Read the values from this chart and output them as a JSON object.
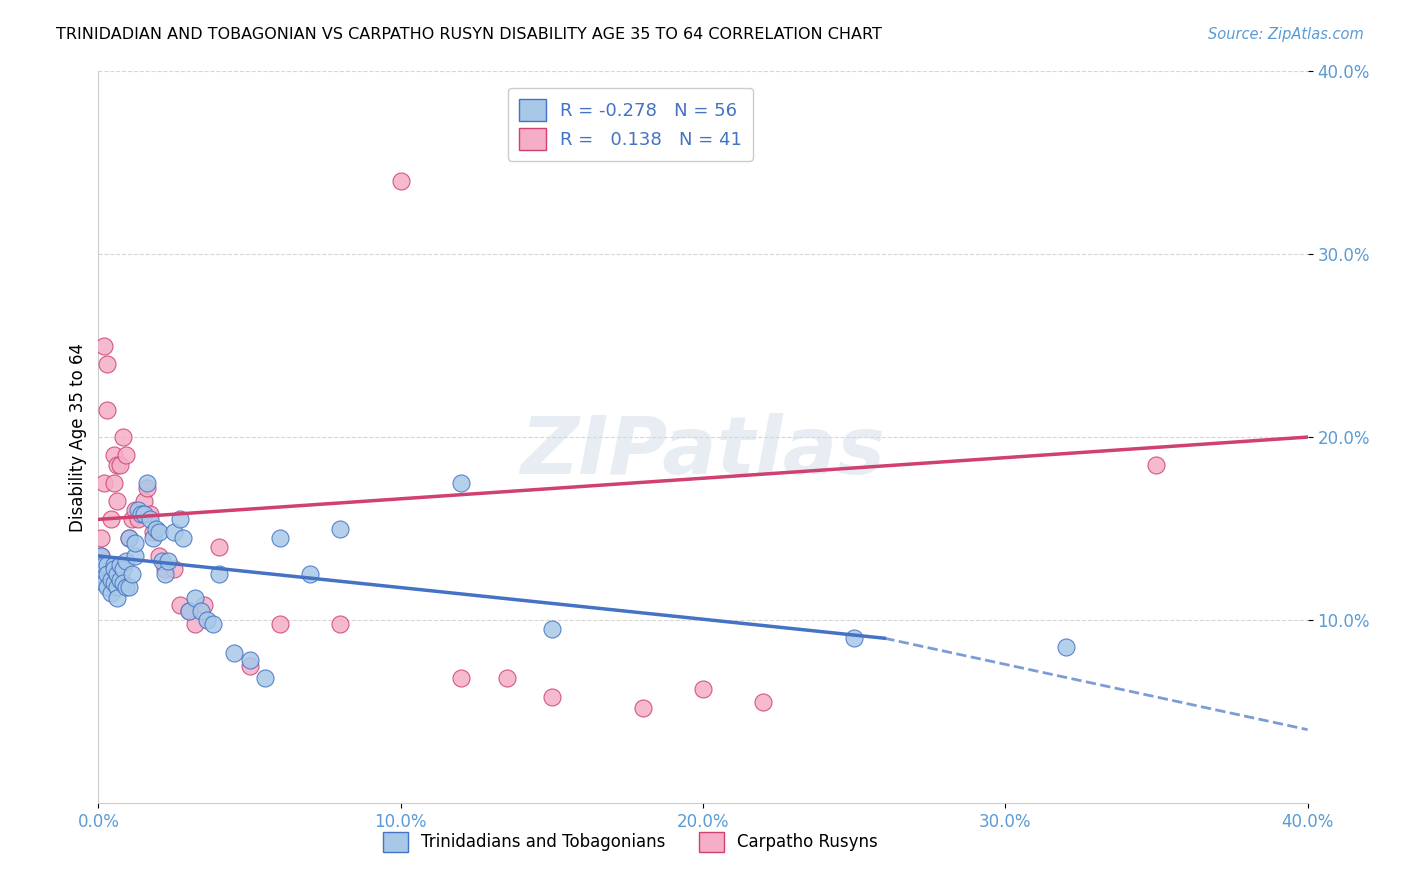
{
  "title": "TRINIDADIAN AND TOBAGONIAN VS CARPATHO RUSYN DISABILITY AGE 35 TO 64 CORRELATION CHART",
  "source": "Source: ZipAtlas.com",
  "ylabel_label": "Disability Age 35 to 64",
  "legend_label1": "Trinidadians and Tobagonians",
  "legend_label2": "Carpatho Rusyns",
  "R1": "-0.278",
  "N1": "56",
  "R2": "0.138",
  "N2": "41",
  "color1": "#a8c8e8",
  "color2": "#f4aec8",
  "line_color1": "#4472c4",
  "line_color2": "#d04070",
  "tick_color": "#5b9bd5",
  "xlim": [
    0.0,
    0.4
  ],
  "ylim": [
    0.0,
    0.4
  ],
  "xticks": [
    0.0,
    0.1,
    0.2,
    0.3,
    0.4
  ],
  "yticks": [
    0.1,
    0.2,
    0.3,
    0.4
  ],
  "xticklabels": [
    "0.0%",
    "10.0%",
    "20.0%",
    "30.0%",
    "40.0%"
  ],
  "yticklabels": [
    "10.0%",
    "20.0%",
    "30.0%",
    "40.0%"
  ],
  "blue_x": [
    0.001,
    0.001,
    0.002,
    0.002,
    0.003,
    0.003,
    0.003,
    0.004,
    0.004,
    0.005,
    0.005,
    0.005,
    0.006,
    0.006,
    0.006,
    0.007,
    0.007,
    0.008,
    0.008,
    0.009,
    0.009,
    0.01,
    0.01,
    0.011,
    0.012,
    0.012,
    0.013,
    0.014,
    0.015,
    0.016,
    0.017,
    0.018,
    0.019,
    0.02,
    0.021,
    0.022,
    0.023,
    0.025,
    0.027,
    0.028,
    0.03,
    0.032,
    0.034,
    0.036,
    0.038,
    0.04,
    0.045,
    0.05,
    0.055,
    0.06,
    0.07,
    0.08,
    0.12,
    0.15,
    0.25,
    0.32
  ],
  "blue_y": [
    0.135,
    0.125,
    0.13,
    0.12,
    0.13,
    0.125,
    0.118,
    0.122,
    0.115,
    0.13,
    0.128,
    0.12,
    0.125,
    0.118,
    0.112,
    0.13,
    0.122,
    0.128,
    0.12,
    0.132,
    0.118,
    0.145,
    0.118,
    0.125,
    0.135,
    0.142,
    0.16,
    0.158,
    0.158,
    0.175,
    0.155,
    0.145,
    0.15,
    0.148,
    0.132,
    0.125,
    0.132,
    0.148,
    0.155,
    0.145,
    0.105,
    0.112,
    0.105,
    0.1,
    0.098,
    0.125,
    0.082,
    0.078,
    0.068,
    0.145,
    0.125,
    0.15,
    0.175,
    0.095,
    0.09,
    0.085
  ],
  "pink_x": [
    0.001,
    0.001,
    0.002,
    0.002,
    0.003,
    0.003,
    0.004,
    0.005,
    0.005,
    0.006,
    0.006,
    0.007,
    0.008,
    0.009,
    0.01,
    0.011,
    0.012,
    0.013,
    0.015,
    0.016,
    0.017,
    0.018,
    0.02,
    0.022,
    0.025,
    0.027,
    0.03,
    0.032,
    0.035,
    0.04,
    0.05,
    0.06,
    0.08,
    0.1,
    0.12,
    0.135,
    0.15,
    0.18,
    0.2,
    0.22,
    0.35
  ],
  "pink_y": [
    0.145,
    0.135,
    0.25,
    0.175,
    0.215,
    0.24,
    0.155,
    0.19,
    0.175,
    0.185,
    0.165,
    0.185,
    0.2,
    0.19,
    0.145,
    0.155,
    0.16,
    0.155,
    0.165,
    0.172,
    0.158,
    0.148,
    0.135,
    0.128,
    0.128,
    0.108,
    0.105,
    0.098,
    0.108,
    0.14,
    0.075,
    0.098,
    0.098,
    0.34,
    0.068,
    0.068,
    0.058,
    0.052,
    0.062,
    0.055,
    0.185
  ],
  "blue_line_x0": 0.0,
  "blue_line_x_solid_end": 0.26,
  "blue_line_x_dashed_end": 0.4,
  "blue_line_y0": 0.135,
  "blue_line_y_solid_end": 0.09,
  "blue_line_y_dashed_end": 0.04,
  "pink_line_x0": 0.0,
  "pink_line_x_end": 0.4,
  "pink_line_y0": 0.155,
  "pink_line_y_end": 0.2
}
